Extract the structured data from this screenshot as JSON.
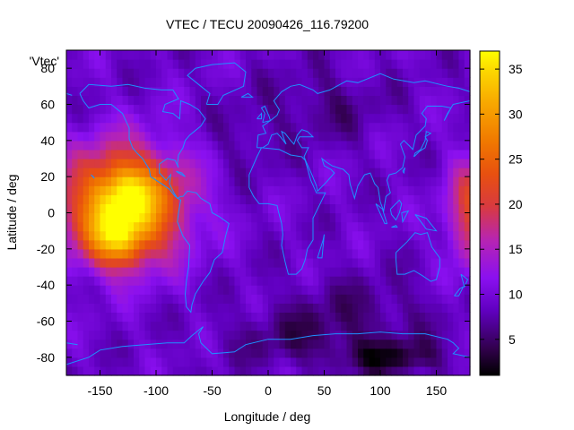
{
  "chart_data": {
    "type": "heatmap",
    "title": "VTEC / TECU 20090426_116.79200",
    "xlabel": "Longitude / deg",
    "ylabel": "Latitude / deg",
    "xlim": [
      -180,
      180
    ],
    "ylim": [
      -90,
      90
    ],
    "xticks": [
      -150,
      -100,
      -50,
      0,
      50,
      100,
      150
    ],
    "yticks": [
      -80,
      -60,
      -40,
      -20,
      0,
      20,
      40,
      60,
      80
    ],
    "series_label": "'Vtec'",
    "colorbar": {
      "min": 1,
      "max": 37,
      "ticks": [
        5,
        10,
        15,
        20,
        25,
        30,
        35
      ],
      "palette": "black-purple-red-yellow"
    },
    "background_level": 9,
    "hotspots": [
      {
        "lon": -128,
        "lat": 5,
        "rlon": 52,
        "rlat": 30,
        "peak": 26
      },
      {
        "lon": -135,
        "lat": -15,
        "rlon": 25,
        "rlat": 15,
        "peak": 11
      },
      {
        "lon": -125,
        "lat": 12,
        "rlon": 20,
        "rlat": 12,
        "peak": 5
      },
      {
        "lon": 182,
        "lat": 0,
        "rlon": 22,
        "rlat": 28,
        "peak": 13
      }
    ],
    "lows": [
      {
        "lon": 110,
        "lat": -80,
        "rlon": 45,
        "rlat": 10,
        "depth": 6
      },
      {
        "lon": 80,
        "lat": -55,
        "rlon": 70,
        "rlat": 20,
        "depth": 3
      },
      {
        "lon": 20,
        "lat": -70,
        "rlon": 60,
        "rlat": 15,
        "depth": 3
      },
      {
        "lon": 50,
        "lat": 60,
        "rlon": 50,
        "rlat": 20,
        "depth": 3
      },
      {
        "lon": -20,
        "lat": 40,
        "rlon": 30,
        "rlat": 20,
        "depth": 2
      }
    ],
    "coastlines": [
      [
        [
          -168,
          66
        ],
        [
          -160,
          71
        ],
        [
          -140,
          70
        ],
        [
          -125,
          71
        ],
        [
          -110,
          69
        ],
        [
          -95,
          68
        ],
        [
          -85,
          68
        ],
        [
          -80,
          63
        ],
        [
          -92,
          60
        ],
        [
          -94,
          56
        ],
        [
          -85,
          55
        ],
        [
          -79,
          52
        ],
        [
          -78,
          62
        ],
        [
          -70,
          60
        ],
        [
          -62,
          57
        ],
        [
          -56,
          52
        ],
        [
          -60,
          48
        ],
        [
          -66,
          45
        ],
        [
          -70,
          43
        ],
        [
          -74,
          40
        ],
        [
          -76,
          36
        ],
        [
          -80,
          32
        ],
        [
          -81,
          27
        ],
        [
          -80,
          25
        ],
        [
          -83,
          29
        ],
        [
          -90,
          30
        ],
        [
          -97,
          27
        ],
        [
          -97,
          22
        ],
        [
          -91,
          18
        ],
        [
          -87,
          21
        ],
        [
          -88,
          16
        ],
        [
          -84,
          11
        ],
        [
          -81,
          8
        ],
        [
          -78,
          9
        ],
        [
          -76,
          9
        ],
        [
          -72,
          12
        ],
        [
          -64,
          11
        ],
        [
          -60,
          8
        ],
        [
          -52,
          5
        ],
        [
          -50,
          0
        ],
        [
          -44,
          -2
        ],
        [
          -35,
          -6
        ],
        [
          -38,
          -13
        ],
        [
          -41,
          -22
        ],
        [
          -48,
          -26
        ],
        [
          -52,
          -33
        ],
        [
          -58,
          -38
        ],
        [
          -62,
          -42
        ],
        [
          -65,
          -45
        ],
        [
          -68,
          -51
        ],
        [
          -69,
          -55
        ],
        [
          -73,
          -52
        ],
        [
          -74,
          -45
        ],
        [
          -73,
          -38
        ],
        [
          -71,
          -30
        ],
        [
          -70,
          -18
        ],
        [
          -76,
          -13
        ],
        [
          -81,
          -5
        ],
        [
          -80,
          0
        ],
        [
          -78,
          7
        ],
        [
          -83,
          9
        ],
        [
          -88,
          13
        ],
        [
          -95,
          16
        ],
        [
          -105,
          20
        ],
        [
          -106,
          24
        ],
        [
          -112,
          30
        ],
        [
          -117,
          33
        ],
        [
          -121,
          36
        ],
        [
          -124,
          41
        ],
        [
          -124,
          47
        ],
        [
          -130,
          55
        ],
        [
          -140,
          60
        ],
        [
          -150,
          60
        ],
        [
          -160,
          58
        ],
        [
          -165,
          62
        ],
        [
          -168,
          66
        ]
      ],
      [
        [
          -55,
          60
        ],
        [
          -45,
          60
        ],
        [
          -40,
          65
        ],
        [
          -22,
          70
        ],
        [
          -20,
          78
        ],
        [
          -30,
          83
        ],
        [
          -50,
          82
        ],
        [
          -65,
          80
        ],
        [
          -72,
          76
        ],
        [
          -60,
          70
        ],
        [
          -52,
          66
        ],
        [
          -55,
          60
        ]
      ],
      [
        [
          -10,
          36
        ],
        [
          -9,
          43
        ],
        [
          -2,
          44
        ],
        [
          -5,
          48
        ],
        [
          2,
          51
        ],
        [
          8,
          54
        ],
        [
          10,
          57
        ],
        [
          5,
          62
        ],
        [
          12,
          67
        ],
        [
          20,
          70
        ],
        [
          28,
          71
        ],
        [
          40,
          68
        ],
        [
          44,
          66
        ],
        [
          55,
          68
        ],
        [
          70,
          73
        ],
        [
          80,
          72
        ],
        [
          100,
          77
        ],
        [
          112,
          74
        ],
        [
          130,
          72
        ],
        [
          140,
          73
        ],
        [
          160,
          70
        ],
        [
          170,
          69
        ],
        [
          180,
          67
        ]
      ],
      [
        [
          -180,
          66
        ],
        [
          -175,
          65
        ]
      ],
      [
        [
          180,
          62
        ],
        [
          165,
          60
        ],
        [
          160,
          55
        ],
        [
          157,
          51
        ],
        [
          163,
          58
        ],
        [
          155,
          59
        ],
        [
          142,
          59
        ],
        [
          137,
          55
        ],
        [
          141,
          52
        ],
        [
          140,
          48
        ],
        [
          132,
          43
        ],
        [
          129,
          35
        ],
        [
          126,
          37
        ],
        [
          121,
          40
        ],
        [
          118,
          38
        ],
        [
          122,
          31
        ],
        [
          120,
          25
        ],
        [
          114,
          22
        ],
        [
          108,
          21
        ],
        [
          106,
          18
        ],
        [
          109,
          11
        ],
        [
          105,
          9
        ],
        [
          103,
          1
        ],
        [
          100,
          6
        ],
        [
          98,
          14
        ],
        [
          95,
          16
        ],
        [
          91,
          22
        ],
        [
          86,
          21
        ],
        [
          80,
          15
        ],
        [
          77,
          8
        ],
        [
          73,
          16
        ],
        [
          72,
          21
        ],
        [
          67,
          24
        ],
        [
          62,
          25
        ],
        [
          57,
          26
        ],
        [
          52,
          28
        ],
        [
          48,
          30
        ],
        [
          50,
          26
        ],
        [
          56,
          24
        ],
        [
          59,
          22
        ],
        [
          52,
          17
        ],
        [
          44,
          12
        ],
        [
          43,
          15
        ],
        [
          39,
          21
        ],
        [
          34,
          28
        ],
        [
          32,
          31
        ],
        [
          35,
          35
        ],
        [
          36,
          36
        ],
        [
          30,
          36
        ],
        [
          26,
          40
        ],
        [
          28,
          42
        ],
        [
          40,
          42
        ],
        [
          35,
          45
        ],
        [
          30,
          46
        ],
        [
          26,
          43
        ],
        [
          23,
          38
        ],
        [
          20,
          40
        ],
        [
          15,
          44
        ],
        [
          12,
          45
        ],
        [
          14,
          41
        ],
        [
          16,
          38
        ],
        [
          11,
          42
        ],
        [
          8,
          44
        ],
        [
          3,
          43
        ],
        [
          0,
          38
        ],
        [
          -5,
          36
        ],
        [
          -10,
          36
        ]
      ],
      [
        [
          -6,
          36
        ],
        [
          -10,
          31
        ],
        [
          -17,
          21
        ],
        [
          -17,
          14
        ],
        [
          -13,
          9
        ],
        [
          -8,
          5
        ],
        [
          0,
          5
        ],
        [
          8,
          4
        ],
        [
          9,
          1
        ],
        [
          12,
          -6
        ],
        [
          13,
          -12
        ],
        [
          12,
          -18
        ],
        [
          15,
          -27
        ],
        [
          18,
          -34
        ],
        [
          25,
          -34
        ],
        [
          30,
          -31
        ],
        [
          33,
          -26
        ],
        [
          35,
          -20
        ],
        [
          40,
          -15
        ],
        [
          40,
          -10
        ],
        [
          40,
          -3
        ],
        [
          44,
          2
        ],
        [
          51,
          11
        ],
        [
          43,
          11
        ],
        [
          38,
          18
        ],
        [
          33,
          29
        ],
        [
          30,
          31
        ],
        [
          20,
          32
        ],
        [
          10,
          35
        ],
        [
          -6,
          36
        ]
      ],
      [
        [
          114,
          -22
        ],
        [
          114,
          -26
        ],
        [
          115,
          -34
        ],
        [
          122,
          -34
        ],
        [
          130,
          -32
        ],
        [
          138,
          -35
        ],
        [
          145,
          -38
        ],
        [
          150,
          -37
        ],
        [
          153,
          -30
        ],
        [
          153,
          -25
        ],
        [
          146,
          -19
        ],
        [
          142,
          -11
        ],
        [
          136,
          -12
        ],
        [
          131,
          -11
        ],
        [
          124,
          -16
        ],
        [
          114,
          -22
        ]
      ],
      [
        [
          -5,
          50
        ],
        [
          -3,
          55
        ],
        [
          -6,
          58
        ],
        [
          -3,
          59
        ],
        [
          1,
          53
        ],
        [
          2,
          51
        ],
        [
          -5,
          50
        ]
      ],
      [
        [
          -10,
          52
        ],
        [
          -6,
          55
        ],
        [
          -6,
          52
        ],
        [
          -10,
          52
        ]
      ],
      [
        [
          -24,
          64
        ],
        [
          -14,
          64
        ],
        [
          -18,
          66
        ],
        [
          -24,
          64
        ]
      ],
      [
        [
          130,
          31
        ],
        [
          135,
          34
        ],
        [
          140,
          36
        ],
        [
          142,
          40
        ],
        [
          140,
          42
        ],
        [
          145,
          44
        ],
        [
          141,
          45
        ],
        [
          140,
          40
        ],
        [
          136,
          35
        ],
        [
          131,
          33
        ],
        [
          130,
          31
        ]
      ],
      [
        [
          96,
          5
        ],
        [
          102,
          2
        ],
        [
          106,
          -6
        ],
        [
          104,
          -6
        ],
        [
          96,
          5
        ]
      ],
      [
        [
          110,
          -8
        ],
        [
          115,
          -8
        ],
        [
          114,
          -7
        ],
        [
          110,
          -8
        ]
      ],
      [
        [
          109,
          2
        ],
        [
          117,
          7
        ],
        [
          119,
          5
        ],
        [
          117,
          0
        ],
        [
          114,
          -4
        ],
        [
          110,
          -1
        ],
        [
          109,
          2
        ]
      ],
      [
        [
          119,
          0
        ],
        [
          125,
          1
        ],
        [
          120,
          -5
        ],
        [
          119,
          0
        ]
      ],
      [
        [
          131,
          -1
        ],
        [
          141,
          -3
        ],
        [
          150,
          -10
        ],
        [
          141,
          -9
        ],
        [
          135,
          -4
        ],
        [
          131,
          -1
        ]
      ],
      [
        [
          172,
          -34
        ],
        [
          178,
          -37
        ],
        [
          175,
          -41
        ],
        [
          172,
          -34
        ]
      ],
      [
        [
          166,
          -46
        ],
        [
          171,
          -42
        ],
        [
          174,
          -41
        ],
        [
          170,
          -46
        ],
        [
          166,
          -46
        ]
      ],
      [
        [
          44,
          -25
        ],
        [
          49,
          -15
        ],
        [
          50,
          -12
        ],
        [
          48,
          -25
        ],
        [
          44,
          -25
        ]
      ],
      [
        [
          -82,
          23
        ],
        [
          -77,
          22
        ],
        [
          -74,
          20
        ],
        [
          -80,
          22
        ],
        [
          -82,
          23
        ]
      ],
      [
        [
          -180,
          -84
        ],
        [
          -160,
          -80
        ],
        [
          -150,
          -76
        ],
        [
          -130,
          -74
        ],
        [
          -110,
          -73
        ],
        [
          -90,
          -72
        ],
        [
          -75,
          -72
        ],
        [
          -68,
          -68
        ],
        [
          -58,
          -63
        ],
        [
          -62,
          -67
        ],
        [
          -60,
          -72
        ],
        [
          -50,
          -78
        ],
        [
          -30,
          -77
        ],
        [
          -20,
          -73
        ],
        [
          0,
          -70
        ],
        [
          20,
          -70
        ],
        [
          40,
          -68
        ],
        [
          60,
          -67
        ],
        [
          80,
          -67
        ],
        [
          100,
          -66
        ],
        [
          120,
          -67
        ],
        [
          140,
          -67
        ],
        [
          160,
          -70
        ],
        [
          165,
          -72
        ],
        [
          170,
          -75
        ],
        [
          165,
          -78
        ],
        [
          180,
          -80
        ]
      ],
      [
        [
          -180,
          -72
        ],
        [
          -170,
          -73
        ]
      ],
      [
        [
          120,
          23
        ],
        [
          122,
          25
        ],
        [
          121,
          22
        ],
        [
          120,
          23
        ]
      ],
      [
        [
          -158,
          21
        ],
        [
          -155,
          19
        ],
        [
          -156,
          20
        ],
        [
          -158,
          21
        ]
      ]
    ]
  }
}
